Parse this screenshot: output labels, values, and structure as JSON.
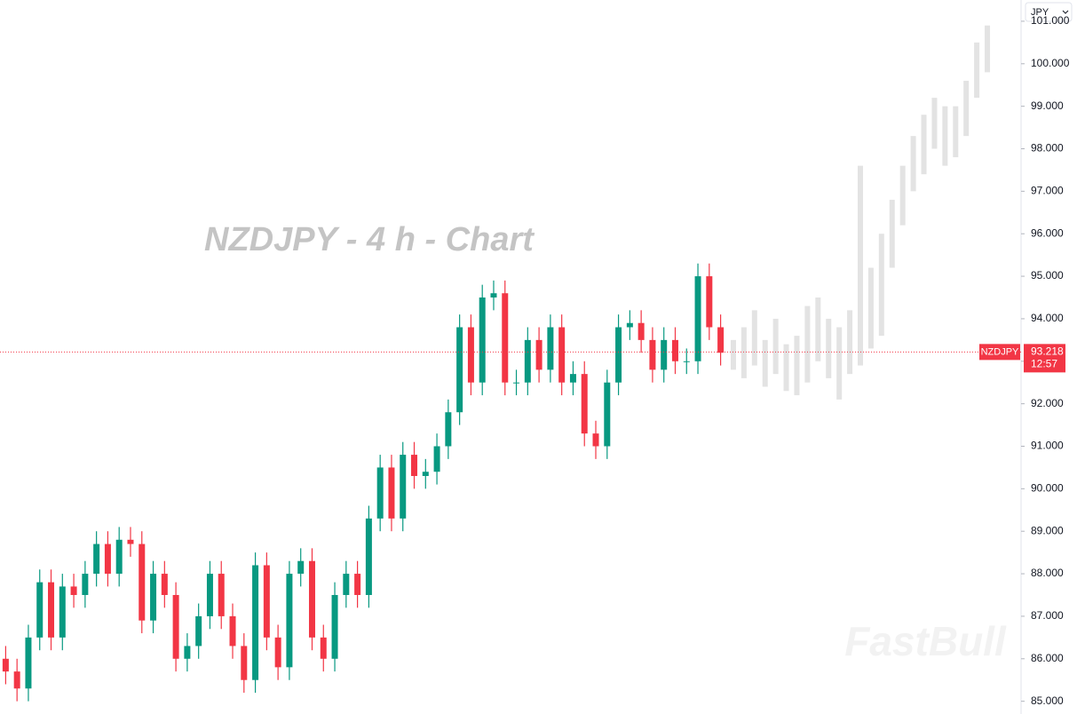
{
  "chart_data": {
    "type": "candlestick",
    "title": "NZDJPY - 4 h - Chart",
    "currency": "JPY",
    "countdown": "12:57",
    "watermark": "FastBull",
    "last_price": 93.218,
    "last_price_color": "#f23645",
    "ylim": [
      84.7,
      101.5
    ],
    "yticks": [
      {
        "value": 85,
        "label": "85.000"
      },
      {
        "value": 86,
        "label": "86.000"
      },
      {
        "value": 87,
        "label": "87.000"
      },
      {
        "value": 88,
        "label": "88.000"
      },
      {
        "value": 89,
        "label": "89.000"
      },
      {
        "value": 90,
        "label": "90.000"
      },
      {
        "value": 91,
        "label": "91.000"
      },
      {
        "value": 92,
        "label": "92.000"
      },
      {
        "value": 93,
        "label": "93.000"
      },
      {
        "value": 94,
        "label": "94.000"
      },
      {
        "value": 95,
        "label": "95.000"
      },
      {
        "value": 96,
        "label": "96.000"
      },
      {
        "value": 97,
        "label": "97.000"
      },
      {
        "value": 98,
        "label": "98.000"
      },
      {
        "value": 99,
        "label": "99.000"
      },
      {
        "value": 100,
        "label": "100.000"
      },
      {
        "value": 101,
        "label": "101.000"
      }
    ],
    "series": [
      {
        "name": "NZDJPY",
        "up_color": "#089981",
        "down_color": "#f23645",
        "open": [
          86.0,
          85.7,
          85.3,
          86.5,
          87.8,
          86.5,
          87.7,
          87.5,
          88,
          88.7,
          88,
          88.8,
          88.7,
          86.9,
          88,
          87.5,
          86,
          86.3,
          87,
          88,
          87,
          86.3,
          85.5,
          88.2,
          86.5,
          85.8,
          88,
          88.3,
          86.5,
          86,
          87.5,
          88,
          87.5,
          89.3,
          90.5,
          89.3,
          90.8,
          90.3,
          90.4,
          91,
          91.8,
          93.8,
          92.5,
          94.5,
          94.6,
          92.5,
          92.5,
          93.5,
          92.8,
          93.8,
          92.5,
          92.7,
          91.3,
          91,
          92.5,
          93.8,
          93.9,
          93.5,
          92.8,
          93.5,
          93,
          93,
          95,
          93.8
        ],
        "high": [
          86.3,
          86.0,
          86.8,
          88.1,
          88.1,
          88.0,
          88.0,
          88.3,
          89.0,
          89.0,
          89.1,
          89.1,
          89.0,
          88.3,
          88.3,
          87.8,
          86.6,
          87.3,
          88.3,
          88.3,
          87.3,
          86.6,
          88.5,
          88.5,
          86.8,
          88.3,
          88.6,
          88.6,
          86.8,
          87.8,
          88.3,
          88.3,
          89.6,
          90.8,
          90.8,
          91.1,
          91.1,
          90.7,
          91.3,
          92.1,
          94.1,
          94.1,
          94.8,
          94.9,
          94.9,
          92.8,
          93.8,
          93.8,
          94.1,
          94.1,
          93.0,
          93.0,
          91.6,
          92.8,
          94.1,
          94.2,
          94.2,
          93.8,
          93.8,
          93.8,
          93.3,
          95.3,
          95.3,
          94.1
        ],
        "low": [
          85.4,
          85.0,
          85.0,
          86.2,
          86.2,
          86.2,
          87.2,
          87.2,
          87.7,
          87.7,
          87.7,
          88.4,
          86.6,
          86.6,
          87.2,
          85.7,
          85.7,
          86.0,
          86.7,
          86.7,
          86.0,
          85.2,
          85.2,
          86.2,
          85.5,
          85.5,
          87.7,
          86.2,
          85.7,
          85.7,
          87.2,
          87.2,
          87.2,
          89.0,
          89.0,
          89.0,
          90.0,
          90.0,
          90.1,
          90.7,
          91.5,
          92.2,
          92.2,
          94.2,
          92.2,
          92.2,
          92.2,
          92.5,
          92.5,
          92.2,
          92.2,
          91.0,
          90.7,
          90.7,
          92.2,
          93.5,
          93.2,
          92.5,
          92.5,
          92.7,
          92.7,
          92.7,
          93.5,
          92.9
        ],
        "close": [
          85.7,
          85.3,
          86.5,
          87.8,
          86.5,
          87.7,
          87.5,
          88,
          88.7,
          88,
          88.8,
          88.7,
          86.9,
          88,
          87.5,
          86,
          86.3,
          87,
          88,
          87,
          86.3,
          85.5,
          88.2,
          86.5,
          85.8,
          88,
          88.3,
          86.5,
          86,
          87.5,
          88,
          87.5,
          89.3,
          90.5,
          89.3,
          90.8,
          90.3,
          90.4,
          91,
          91.8,
          93.8,
          92.5,
          94.5,
          94.6,
          92.5,
          92.5,
          93.5,
          92.8,
          93.8,
          92.5,
          92.7,
          91.3,
          91,
          92.5,
          93.8,
          93.9,
          93.5,
          92.8,
          93.5,
          93,
          93,
          95,
          93.8,
          93.2
        ]
      }
    ],
    "projection": {
      "color": "#e3e3e3",
      "high": [
        93.5,
        93.8,
        94.2,
        93.5,
        94.0,
        93.4,
        93.6,
        94.3,
        94.5,
        94.0,
        93.8,
        94.2,
        97.6,
        95.2,
        96.0,
        96.8,
        97.6,
        98.3,
        98.8,
        99.2,
        99.0,
        99.0,
        99.6,
        100.5,
        100.9
      ],
      "low": [
        92.8,
        92.6,
        92.9,
        92.4,
        92.7,
        92.3,
        92.2,
        92.5,
        93.0,
        92.6,
        92.1,
        92.7,
        92.9,
        93.3,
        93.6,
        95.2,
        96.2,
        97.0,
        97.4,
        98.0,
        97.6,
        97.8,
        98.3,
        99.2,
        99.8
      ]
    }
  }
}
